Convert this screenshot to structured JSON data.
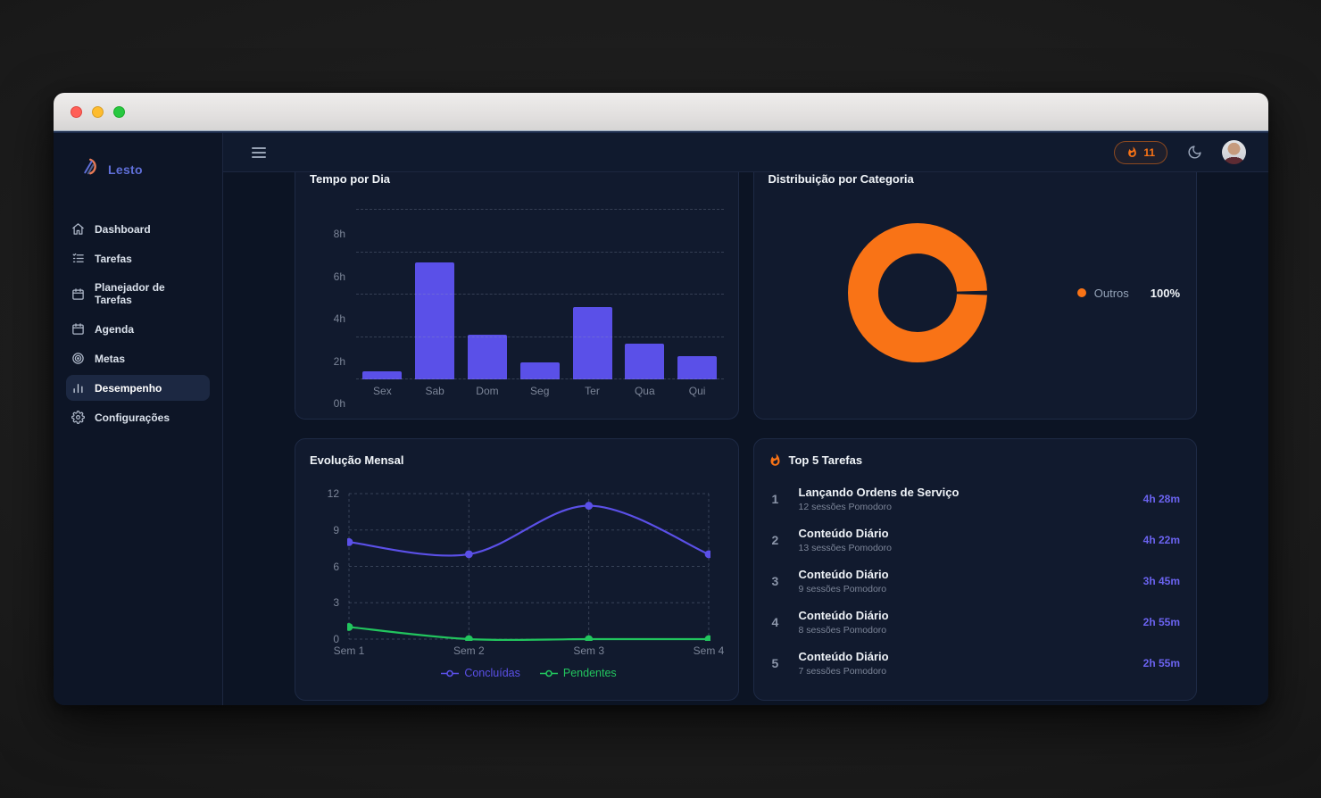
{
  "window": {
    "title_bar": {
      "buttons": [
        "close",
        "minimize",
        "zoom"
      ]
    }
  },
  "sidebar": {
    "logo": {
      "text": "Lesto",
      "icon": "lesto-logo-icon"
    },
    "items": [
      {
        "label": "Dashboard",
        "icon": "home-icon",
        "active": false
      },
      {
        "label": "Tarefas",
        "icon": "task-list-icon",
        "active": false
      },
      {
        "label": "Planejador de Tarefas",
        "icon": "calendar-icon",
        "active": false
      },
      {
        "label": "Agenda",
        "icon": "calendar-icon",
        "active": false
      },
      {
        "label": "Metas",
        "icon": "target-icon",
        "active": false
      },
      {
        "label": "Desempenho",
        "icon": "bar-chart-icon",
        "active": true
      },
      {
        "label": "Configurações",
        "icon": "gear-icon",
        "active": false
      }
    ]
  },
  "topbar": {
    "menu_icon": "hamburger-icon",
    "streak_badge": {
      "icon": "flame-icon",
      "count": "11"
    },
    "theme_icon": "moon-icon",
    "avatar_icon": "user-avatar"
  },
  "cards": {
    "tempo_por_dia": {
      "title": "Tempo por Dia"
    },
    "distribuicao_categoria": {
      "title": "Distribuição por Categoria",
      "legend": {
        "swatch_color": "#f97316",
        "label": "Outros",
        "value": "100%"
      }
    },
    "evolucao_mensal": {
      "title": "Evolução Mensal"
    },
    "top5": {
      "title": "Top 5 Tarefas",
      "icon": "flame-icon",
      "items": [
        {
          "rank": "1",
          "title": "Lançando Ordens de Serviço",
          "subtitle": "12 sessões Pomodoro",
          "time": "4h 28m"
        },
        {
          "rank": "2",
          "title": "Conteúdo Diário",
          "subtitle": "13 sessões Pomodoro",
          "time": "4h 22m"
        },
        {
          "rank": "3",
          "title": "Conteúdo Diário",
          "subtitle": "9 sessões Pomodoro",
          "time": "3h 45m"
        },
        {
          "rank": "4",
          "title": "Conteúdo Diário",
          "subtitle": "8 sessões Pomodoro",
          "time": "2h 55m"
        },
        {
          "rank": "5",
          "title": "Conteúdo Diário",
          "subtitle": "7 sessões Pomodoro",
          "time": "2h 55m"
        }
      ]
    }
  },
  "chart_data": [
    {
      "id": "tempo_por_dia",
      "type": "bar",
      "title": "Tempo por Dia",
      "categories": [
        "Sex",
        "Sab",
        "Dom",
        "Seg",
        "Ter",
        "Qua",
        "Qui"
      ],
      "values": [
        0.4,
        5.5,
        2.1,
        0.8,
        3.4,
        1.7,
        1.1
      ],
      "xlabel": "",
      "ylabel": "hours",
      "ylim": [
        0,
        8
      ],
      "yticks": [
        "0h",
        "2h",
        "4h",
        "6h",
        "8h"
      ],
      "grid": "dashed-horizontal",
      "bar_color": "#5a50e8"
    },
    {
      "id": "distribuicao_categoria",
      "type": "pie",
      "title": "Distribuição por Categoria",
      "donut": true,
      "slices": [
        {
          "label": "Outros",
          "value": 100,
          "color": "#f97316"
        }
      ],
      "legend_position": "right"
    },
    {
      "id": "evolucao_mensal",
      "type": "line",
      "title": "Evolução Mensal",
      "x": [
        "Sem 1",
        "Sem 2",
        "Sem 3",
        "Sem 4"
      ],
      "series": [
        {
          "name": "Concluídas",
          "values": [
            8,
            7,
            11,
            7
          ],
          "color": "#5b50e8"
        },
        {
          "name": "Pendentes",
          "values": [
            1,
            0,
            0,
            0
          ],
          "color": "#22c55e"
        }
      ],
      "ylim": [
        0,
        12
      ],
      "yticks": [
        0,
        3,
        6,
        9,
        12
      ],
      "grid": "dashed-both",
      "legend_position": "bottom"
    }
  ],
  "colors": {
    "accent_purple": "#5a50e8",
    "accent_green": "#22c55e",
    "accent_orange": "#f97316",
    "card_bg": "#111a2e"
  }
}
